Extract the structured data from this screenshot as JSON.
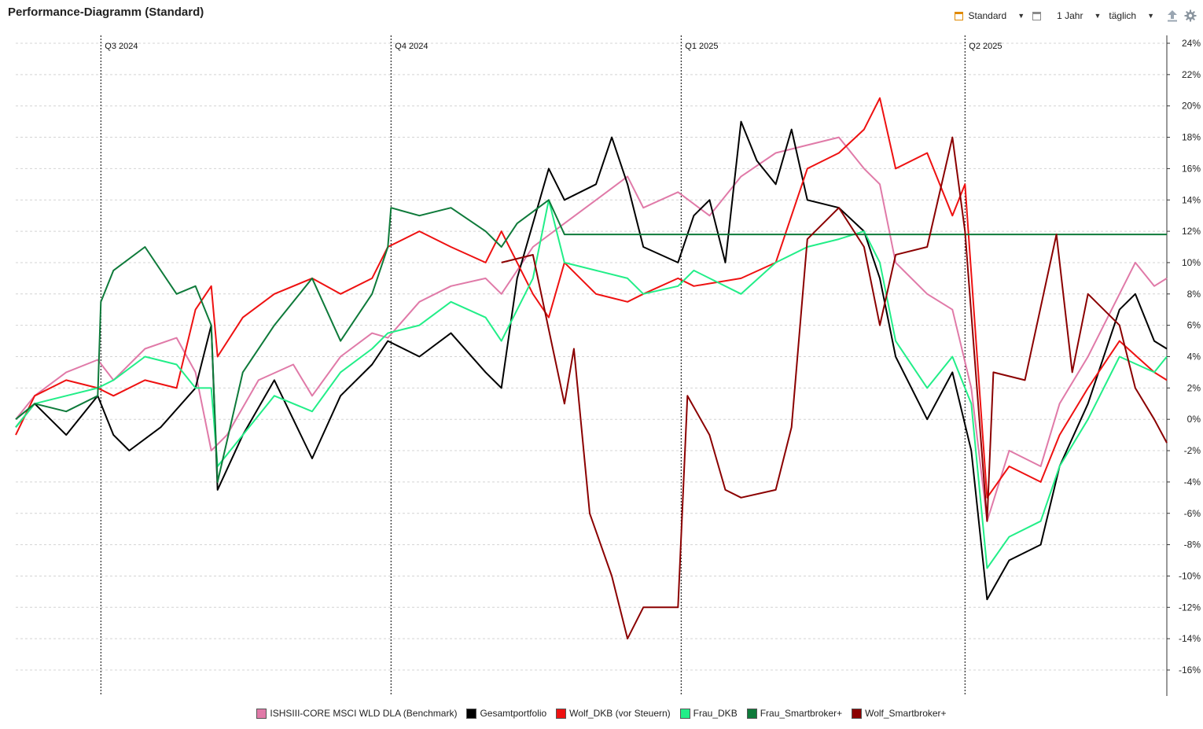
{
  "header": {
    "title": "Performance-Diagramm (Standard)",
    "preset_label": "Standard",
    "period_label": "1 Jahr",
    "interval_label": "täglich"
  },
  "chart_data": {
    "type": "line",
    "title": "Performance-Diagramm (Standard)",
    "ylabel": "",
    "ylim": [
      -17,
      24.5
    ],
    "yticks": [
      24,
      22,
      20,
      18,
      16,
      14,
      12,
      10,
      8,
      6,
      4,
      2,
      0,
      -2,
      -4,
      -6,
      -8,
      -10,
      -12,
      -14,
      -16
    ],
    "ytick_labels": [
      "24%",
      "22%",
      "20%",
      "18%",
      "16%",
      "14%",
      "12%",
      "10%",
      "8%",
      "6%",
      "4%",
      "2%",
      "0%",
      "-2%",
      "-4%",
      "-6%",
      "-8%",
      "-10%",
      "-12%",
      "-14%",
      "-16%"
    ],
    "y_axis_position": "right",
    "grid": true,
    "xlim": [
      "2024-06-04",
      "2025-06-04"
    ],
    "quarter_markers": [
      {
        "label": "Q3 2024",
        "date": "2024-07-01"
      },
      {
        "label": "Q4 2024",
        "date": "2024-10-01"
      },
      {
        "label": "Q1 2025",
        "date": "2025-01-01"
      },
      {
        "label": "Q2 2025",
        "date": "2025-04-01"
      }
    ],
    "legend_position": "bottom",
    "series": [
      {
        "name": "ISHSIII-CORE MSCI WLD DLA (Benchmark)",
        "color": "#e07aa8",
        "points": [
          [
            "2024-06-04",
            0
          ],
          [
            "2024-06-10",
            1.5
          ],
          [
            "2024-06-20",
            3
          ],
          [
            "2024-06-30",
            3.8
          ],
          [
            "2024-07-05",
            2.5
          ],
          [
            "2024-07-15",
            4.5
          ],
          [
            "2024-07-25",
            5.2
          ],
          [
            "2024-07-31",
            3
          ],
          [
            "2024-08-05",
            -2
          ],
          [
            "2024-08-10",
            -1
          ],
          [
            "2024-08-20",
            2.5
          ],
          [
            "2024-08-31",
            3.5
          ],
          [
            "2024-09-06",
            1.5
          ],
          [
            "2024-09-15",
            4
          ],
          [
            "2024-09-25",
            5.5
          ],
          [
            "2024-09-30",
            5.2
          ],
          [
            "2024-10-10",
            7.5
          ],
          [
            "2024-10-20",
            8.5
          ],
          [
            "2024-10-31",
            9
          ],
          [
            "2024-11-05",
            8
          ],
          [
            "2024-11-15",
            11
          ],
          [
            "2024-11-25",
            12.5
          ],
          [
            "2024-12-05",
            14
          ],
          [
            "2024-12-15",
            15.5
          ],
          [
            "2024-12-20",
            13.5
          ],
          [
            "2024-12-31",
            14.5
          ],
          [
            "2025-01-10",
            13
          ],
          [
            "2025-01-20",
            15.5
          ],
          [
            "2025-01-31",
            17
          ],
          [
            "2025-02-10",
            17.5
          ],
          [
            "2025-02-20",
            18
          ],
          [
            "2025-02-28",
            16
          ],
          [
            "2025-03-05",
            15
          ],
          [
            "2025-03-10",
            10
          ],
          [
            "2025-03-20",
            8
          ],
          [
            "2025-03-28",
            7
          ],
          [
            "2025-04-03",
            2
          ],
          [
            "2025-04-08",
            -6.5
          ],
          [
            "2025-04-15",
            -2
          ],
          [
            "2025-04-25",
            -3
          ],
          [
            "2025-05-01",
            1
          ],
          [
            "2025-05-10",
            4
          ],
          [
            "2025-05-20",
            8
          ],
          [
            "2025-05-25",
            10
          ],
          [
            "2025-05-31",
            8.5
          ],
          [
            "2025-06-04",
            9
          ]
        ]
      },
      {
        "name": "Gesamtportfolio",
        "color": "#000000",
        "points": [
          [
            "2024-06-04",
            -0.5
          ],
          [
            "2024-06-10",
            1
          ],
          [
            "2024-06-20",
            -1
          ],
          [
            "2024-06-30",
            1.5
          ],
          [
            "2024-07-05",
            -1
          ],
          [
            "2024-07-10",
            -2
          ],
          [
            "2024-07-20",
            -0.5
          ],
          [
            "2024-07-31",
            2
          ],
          [
            "2024-08-05",
            6
          ],
          [
            "2024-08-07",
            -4.5
          ],
          [
            "2024-08-15",
            -1
          ],
          [
            "2024-08-25",
            2.5
          ],
          [
            "2024-09-06",
            -2.5
          ],
          [
            "2024-09-15",
            1.5
          ],
          [
            "2024-09-25",
            3.5
          ],
          [
            "2024-09-30",
            5
          ],
          [
            "2024-10-10",
            4
          ],
          [
            "2024-10-20",
            5.5
          ],
          [
            "2024-10-31",
            3
          ],
          [
            "2024-11-05",
            2
          ],
          [
            "2024-11-10",
            9
          ],
          [
            "2024-11-20",
            16
          ],
          [
            "2024-11-25",
            14
          ],
          [
            "2024-12-05",
            15
          ],
          [
            "2024-12-10",
            18
          ],
          [
            "2024-12-15",
            15
          ],
          [
            "2024-12-20",
            11
          ],
          [
            "2024-12-31",
            10
          ],
          [
            "2025-01-05",
            13
          ],
          [
            "2025-01-10",
            14
          ],
          [
            "2025-01-15",
            10
          ],
          [
            "2025-01-20",
            19
          ],
          [
            "2025-01-25",
            16.5
          ],
          [
            "2025-01-31",
            15
          ],
          [
            "2025-02-05",
            18.5
          ],
          [
            "2025-02-10",
            14
          ],
          [
            "2025-02-20",
            13.5
          ],
          [
            "2025-02-28",
            12
          ],
          [
            "2025-03-05",
            9
          ],
          [
            "2025-03-10",
            4
          ],
          [
            "2025-03-20",
            0
          ],
          [
            "2025-03-28",
            3
          ],
          [
            "2025-04-03",
            -2
          ],
          [
            "2025-04-08",
            -11.5
          ],
          [
            "2025-04-15",
            -9
          ],
          [
            "2025-04-25",
            -8
          ],
          [
            "2025-05-01",
            -3
          ],
          [
            "2025-05-10",
            1
          ],
          [
            "2025-05-20",
            7
          ],
          [
            "2025-05-25",
            8
          ],
          [
            "2025-05-31",
            5
          ],
          [
            "2025-06-04",
            4.5
          ]
        ]
      },
      {
        "name": "Wolf_DKB (vor Steuern)",
        "color": "#ee1111",
        "points": [
          [
            "2024-06-04",
            -1
          ],
          [
            "2024-06-10",
            1.5
          ],
          [
            "2024-06-20",
            2.5
          ],
          [
            "2024-06-30",
            2
          ],
          [
            "2024-07-05",
            1.5
          ],
          [
            "2024-07-15",
            2.5
          ],
          [
            "2024-07-25",
            2
          ],
          [
            "2024-07-31",
            7
          ],
          [
            "2024-08-05",
            8.5
          ],
          [
            "2024-08-07",
            4
          ],
          [
            "2024-08-15",
            6.5
          ],
          [
            "2024-08-25",
            8
          ],
          [
            "2024-09-06",
            9
          ],
          [
            "2024-09-15",
            8
          ],
          [
            "2024-09-25",
            9
          ],
          [
            "2024-09-30",
            11
          ],
          [
            "2024-10-10",
            12
          ],
          [
            "2024-10-20",
            11
          ],
          [
            "2024-10-31",
            10
          ],
          [
            "2024-11-05",
            12
          ],
          [
            "2024-11-15",
            8
          ],
          [
            "2024-11-20",
            6.5
          ],
          [
            "2024-11-25",
            10
          ],
          [
            "2024-12-05",
            8
          ],
          [
            "2024-12-15",
            7.5
          ],
          [
            "2024-12-20",
            8
          ],
          [
            "2024-12-31",
            9
          ],
          [
            "2025-01-05",
            8.5
          ],
          [
            "2025-01-20",
            9
          ],
          [
            "2025-01-31",
            10
          ],
          [
            "2025-02-10",
            16
          ],
          [
            "2025-02-20",
            17
          ],
          [
            "2025-02-28",
            18.5
          ],
          [
            "2025-03-05",
            20.5
          ],
          [
            "2025-03-10",
            16
          ],
          [
            "2025-03-20",
            17
          ],
          [
            "2025-03-28",
            13
          ],
          [
            "2025-04-01",
            15
          ],
          [
            "2025-04-08",
            -5
          ],
          [
            "2025-04-15",
            -3
          ],
          [
            "2025-04-25",
            -4
          ],
          [
            "2025-05-01",
            -1
          ],
          [
            "2025-05-10",
            2
          ],
          [
            "2025-05-20",
            5
          ],
          [
            "2025-05-31",
            3
          ],
          [
            "2025-06-04",
            2.5
          ]
        ]
      },
      {
        "name": "Frau_DKB",
        "color": "#22ee88",
        "points": [
          [
            "2024-06-04",
            -0.5
          ],
          [
            "2024-06-10",
            1
          ],
          [
            "2024-06-20",
            1.5
          ],
          [
            "2024-06-30",
            2
          ],
          [
            "2024-07-05",
            2.5
          ],
          [
            "2024-07-15",
            4
          ],
          [
            "2024-07-25",
            3.5
          ],
          [
            "2024-07-31",
            2
          ],
          [
            "2024-08-05",
            2
          ],
          [
            "2024-08-07",
            -3
          ],
          [
            "2024-08-15",
            -1
          ],
          [
            "2024-08-25",
            1.5
          ],
          [
            "2024-09-06",
            0.5
          ],
          [
            "2024-09-15",
            3
          ],
          [
            "2024-09-25",
            4.5
          ],
          [
            "2024-09-30",
            5.5
          ],
          [
            "2024-10-10",
            6
          ],
          [
            "2024-10-20",
            7.5
          ],
          [
            "2024-10-31",
            6.5
          ],
          [
            "2024-11-05",
            5
          ],
          [
            "2024-11-15",
            9
          ],
          [
            "2024-11-20",
            14
          ],
          [
            "2024-11-25",
            10
          ],
          [
            "2024-12-05",
            9.5
          ],
          [
            "2024-12-15",
            9
          ],
          [
            "2024-12-20",
            8
          ],
          [
            "2024-12-31",
            8.5
          ],
          [
            "2025-01-05",
            9.5
          ],
          [
            "2025-01-20",
            8
          ],
          [
            "2025-01-31",
            10
          ],
          [
            "2025-02-10",
            11
          ],
          [
            "2025-02-20",
            11.5
          ],
          [
            "2025-02-28",
            12
          ],
          [
            "2025-03-05",
            10
          ],
          [
            "2025-03-10",
            5
          ],
          [
            "2025-03-20",
            2
          ],
          [
            "2025-03-28",
            4
          ],
          [
            "2025-04-03",
            1
          ],
          [
            "2025-04-08",
            -9.5
          ],
          [
            "2025-04-15",
            -7.5
          ],
          [
            "2025-04-25",
            -6.5
          ],
          [
            "2025-05-01",
            -3
          ],
          [
            "2025-05-10",
            0
          ],
          [
            "2025-05-20",
            4
          ],
          [
            "2025-05-31",
            3
          ],
          [
            "2025-06-04",
            4
          ]
        ]
      },
      {
        "name": "Frau_Smartbroker+",
        "color": "#0e7a3a",
        "points": [
          [
            "2024-06-04",
            0
          ],
          [
            "2024-06-10",
            1
          ],
          [
            "2024-06-20",
            0.5
          ],
          [
            "2024-06-30",
            1.5
          ],
          [
            "2024-07-01",
            7.5
          ],
          [
            "2024-07-05",
            9.5
          ],
          [
            "2024-07-15",
            11
          ],
          [
            "2024-07-25",
            8
          ],
          [
            "2024-07-31",
            8.5
          ],
          [
            "2024-08-05",
            6
          ],
          [
            "2024-08-07",
            -4
          ],
          [
            "2024-08-15",
            3
          ],
          [
            "2024-08-25",
            6
          ],
          [
            "2024-09-06",
            9
          ],
          [
            "2024-09-15",
            5
          ],
          [
            "2024-09-25",
            8
          ],
          [
            "2024-09-30",
            11
          ],
          [
            "2024-10-01",
            13.5
          ],
          [
            "2024-10-10",
            13
          ],
          [
            "2024-10-20",
            13.5
          ],
          [
            "2024-10-31",
            12
          ],
          [
            "2024-11-05",
            11
          ],
          [
            "2024-11-10",
            12.5
          ],
          [
            "2024-11-20",
            14
          ],
          [
            "2024-11-25",
            11.8
          ],
          [
            "2025-06-04",
            11.8
          ]
        ]
      },
      {
        "name": "Wolf_Smartbroker+",
        "color": "#8b0000",
        "points": [
          [
            "2024-11-05",
            10
          ],
          [
            "2024-11-15",
            10.5
          ],
          [
            "2024-11-25",
            1
          ],
          [
            "2024-11-28",
            4.5
          ],
          [
            "2024-12-03",
            -6
          ],
          [
            "2024-12-10",
            -10
          ],
          [
            "2024-12-15",
            -14
          ],
          [
            "2024-12-20",
            -12
          ],
          [
            "2024-12-31",
            -12
          ],
          [
            "2025-01-03",
            1.5
          ],
          [
            "2025-01-10",
            -1
          ],
          [
            "2025-01-15",
            -4.5
          ],
          [
            "2025-01-20",
            -5
          ],
          [
            "2025-01-31",
            -4.5
          ],
          [
            "2025-02-05",
            -0.5
          ],
          [
            "2025-02-10",
            11.5
          ],
          [
            "2025-02-20",
            13.5
          ],
          [
            "2025-02-28",
            11
          ],
          [
            "2025-03-05",
            6
          ],
          [
            "2025-03-10",
            10.5
          ],
          [
            "2025-03-20",
            11
          ],
          [
            "2025-03-28",
            18
          ],
          [
            "2025-04-01",
            12
          ],
          [
            "2025-04-08",
            -6.5
          ],
          [
            "2025-04-10",
            3
          ],
          [
            "2025-04-20",
            2.5
          ],
          [
            "2025-04-30",
            11.8
          ],
          [
            "2025-05-05",
            3
          ],
          [
            "2025-05-10",
            8
          ],
          [
            "2025-05-20",
            6
          ],
          [
            "2025-05-25",
            2
          ],
          [
            "2025-05-31",
            0
          ],
          [
            "2025-06-04",
            -1.5
          ]
        ]
      }
    ]
  },
  "legend": {
    "items": [
      {
        "label": "ISHSIII-CORE MSCI WLD DLA (Benchmark)",
        "color": "#e07aa8"
      },
      {
        "label": "Gesamtportfolio",
        "color": "#000000"
      },
      {
        "label": "Wolf_DKB (vor Steuern)",
        "color": "#ee1111"
      },
      {
        "label": "Frau_DKB",
        "color": "#22ee88"
      },
      {
        "label": "Frau_Smartbroker+",
        "color": "#0e7a3a"
      },
      {
        "label": "Wolf_Smartbroker+",
        "color": "#8b0000"
      }
    ]
  }
}
